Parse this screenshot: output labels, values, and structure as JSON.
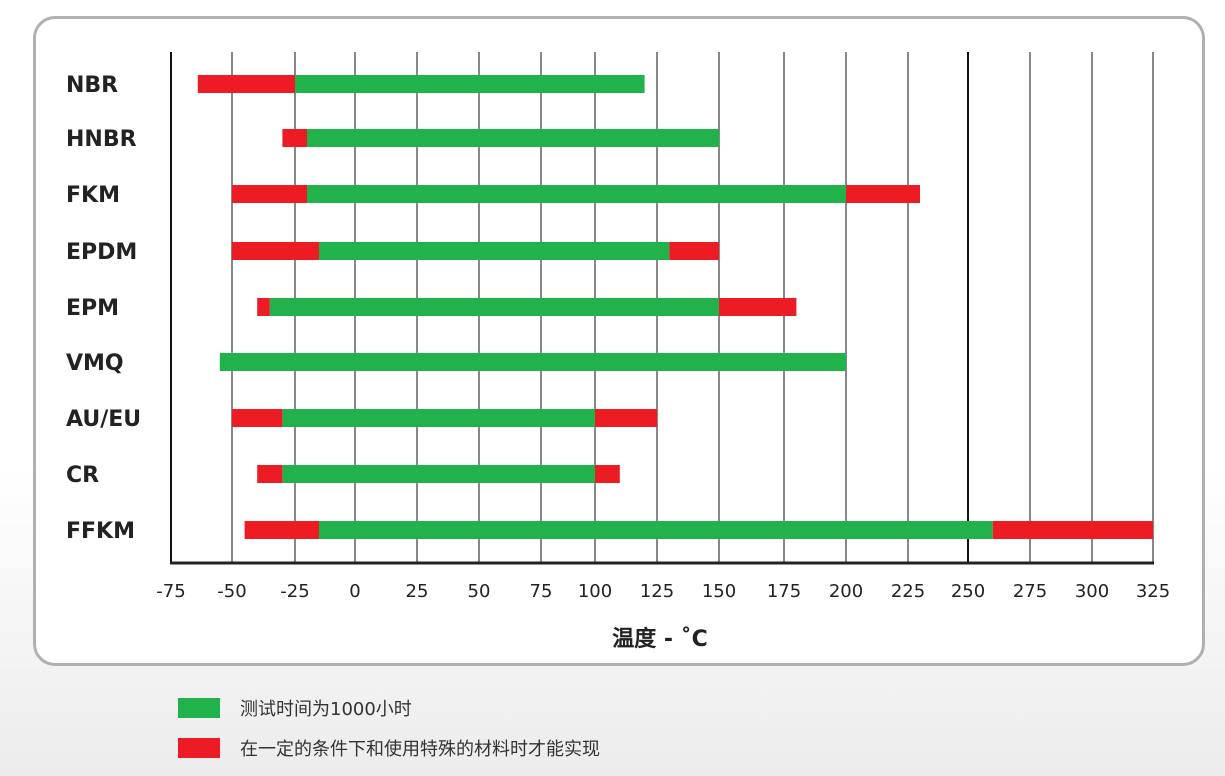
{
  "chart_data": {
    "type": "bar",
    "orientation": "horizontal-range",
    "xlabel": "温度 - ˚C",
    "xticks": [
      -75,
      -50,
      -25,
      0,
      25,
      50,
      75,
      100,
      125,
      150,
      175,
      200,
      225,
      250,
      275,
      300,
      325
    ],
    "xlim": [
      -75,
      325
    ],
    "grid": "vertical",
    "categories": [
      "NBR",
      "HNBR",
      "FKM",
      "EPDM",
      "EPM",
      "VMQ",
      "AU/EU",
      "CR",
      "FFKM"
    ],
    "series": [
      {
        "name": "测试时间为1000小时",
        "color": "#22b24c",
        "ranges": [
          [
            -25,
            120
          ],
          [
            -20,
            150
          ],
          [
            -20,
            200
          ],
          [
            -15,
            130
          ],
          [
            -35,
            150
          ],
          [
            -55,
            200
          ],
          [
            -30,
            100
          ],
          [
            -30,
            100
          ],
          [
            -15,
            260
          ]
        ]
      },
      {
        "name": "在一定的条件下和使用特殊的材料时才能实现",
        "color": "#ed1c24",
        "ranges": [
          [
            [
              -64,
              -25
            ]
          ],
          [
            [
              -30,
              -20
            ]
          ],
          [
            [
              -50,
              -20
            ],
            [
              200,
              230
            ]
          ],
          [
            [
              -50,
              -15
            ],
            [
              130,
              150
            ]
          ],
          [
            [
              -40,
              -35
            ],
            [
              150,
              180
            ]
          ],
          [],
          [
            [
              -50,
              -30
            ],
            [
              100,
              125
            ]
          ],
          [
            [
              -40,
              -30
            ],
            [
              100,
              110
            ]
          ],
          [
            [
              -45,
              -15
            ],
            [
              260,
              325
            ]
          ]
        ]
      }
    ],
    "legend_position": "bottom-left"
  }
}
